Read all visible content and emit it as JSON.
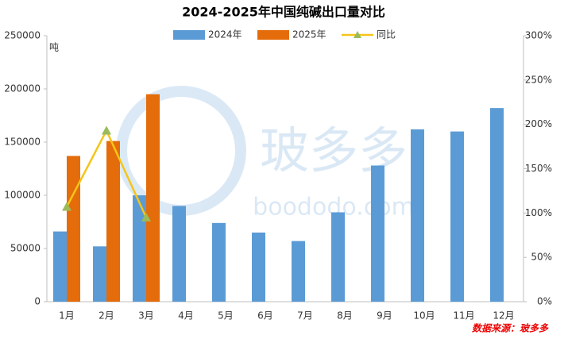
{
  "chart_data": {
    "type": "bar",
    "title": "2024-2025年中国纯碱出口量对比",
    "y_unit": "吨",
    "categories": [
      "1月",
      "2月",
      "3月",
      "4月",
      "5月",
      "6月",
      "7月",
      "8月",
      "9月",
      "10月",
      "11月",
      "12月"
    ],
    "series": [
      {
        "name": "2024年",
        "color": "#5b9bd5",
        "values": [
          66000,
          52000,
          100000,
          90000,
          74000,
          65000,
          57000,
          84000,
          128000,
          162000,
          160000,
          182000
        ]
      },
      {
        "name": "2025年",
        "color": "#e46c0a",
        "values": [
          137000,
          151000,
          195000,
          null,
          null,
          null,
          null,
          null,
          null,
          null,
          null,
          null
        ]
      },
      {
        "name": "同比",
        "type": "line",
        "axis": "y2",
        "color": "#f5c518",
        "marker_color": "#9bbb59",
        "values": [
          107,
          193,
          95,
          null,
          null,
          null,
          null,
          null,
          null,
          null,
          null,
          null
        ]
      }
    ],
    "ylim": [
      0,
      250000
    ],
    "yticks": [
      0,
      50000,
      100000,
      150000,
      200000,
      250000
    ],
    "y2lim": [
      0,
      300
    ],
    "y2ticks": [
      {
        "value": 0,
        "label": "0%"
      },
      {
        "value": 50,
        "label": "50%"
      },
      {
        "value": 100,
        "label": "100%"
      },
      {
        "value": 150,
        "label": "150%"
      },
      {
        "value": 200,
        "label": "200%"
      },
      {
        "value": 250,
        "label": "250%"
      },
      {
        "value": 300,
        "label": "300%"
      }
    ],
    "grid": false,
    "legend": "top",
    "source": "数据来源：玻多多",
    "watermark": {
      "text": "玻多多",
      "url": "boododo.com"
    }
  }
}
